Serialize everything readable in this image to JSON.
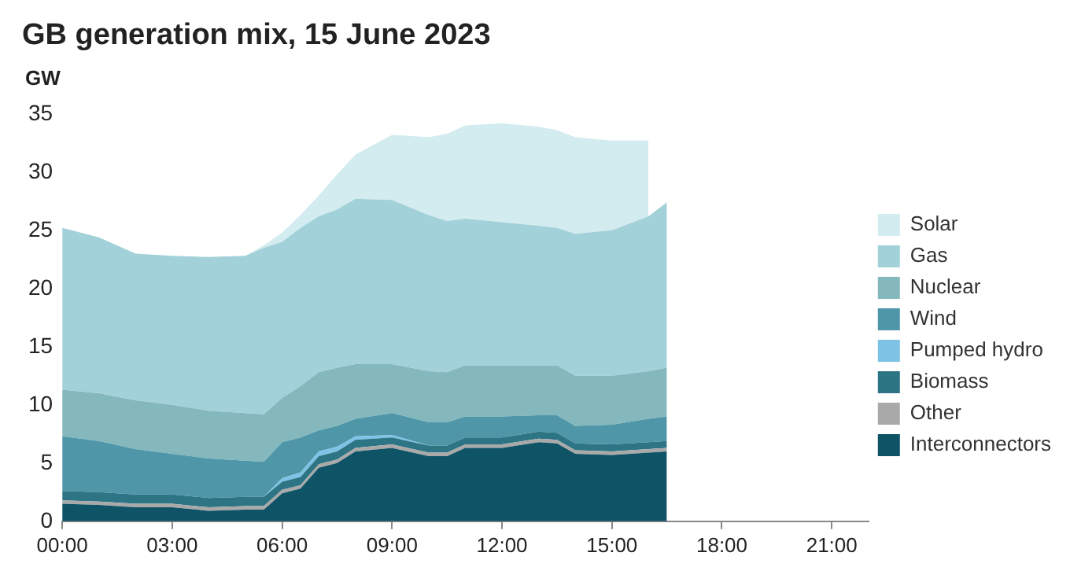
{
  "chart_data": {
    "type": "area",
    "title": "GB generation mix, 15 June 2023",
    "ylabel": "GW",
    "stacked": true,
    "legend": "right",
    "grid": false,
    "x": [
      0,
      1,
      2,
      3,
      4,
      5,
      5.5,
      6,
      6.5,
      7,
      7.5,
      8,
      9,
      10,
      10.5,
      11,
      12,
      13,
      13.5,
      14,
      15,
      16,
      16.5
    ],
    "xlim": [
      0,
      22
    ],
    "xticks": [
      {
        "value": 0,
        "label": "00:00"
      },
      {
        "value": 3,
        "label": "03:00"
      },
      {
        "value": 6,
        "label": "06:00"
      },
      {
        "value": 9,
        "label": "09:00"
      },
      {
        "value": 12,
        "label": "12:00"
      },
      {
        "value": 15,
        "label": "15:00"
      },
      {
        "value": 18,
        "label": "18:00"
      },
      {
        "value": 21,
        "label": "21:00"
      }
    ],
    "ylim": [
      0,
      35
    ],
    "yticks": [
      0,
      5,
      10,
      15,
      20,
      25,
      30,
      35
    ],
    "series": [
      {
        "name": "Interconnectors",
        "color": "#0f5366",
        "values": [
          1.5,
          1.4,
          1.2,
          1.2,
          0.9,
          1.0,
          1.0,
          2.4,
          2.8,
          4.6,
          5.0,
          6.0,
          6.3,
          5.6,
          5.6,
          6.3,
          6.3,
          6.8,
          6.7,
          5.8,
          5.7,
          5.9,
          6.0
        ]
      },
      {
        "name": "Other",
        "color": "#a9a9a9",
        "values": [
          0.3,
          0.3,
          0.3,
          0.3,
          0.3,
          0.3,
          0.3,
          0.3,
          0.3,
          0.3,
          0.3,
          0.3,
          0.3,
          0.3,
          0.3,
          0.3,
          0.3,
          0.3,
          0.3,
          0.3,
          0.3,
          0.3,
          0.3
        ]
      },
      {
        "name": "Biomass",
        "color": "#2d7585",
        "values": [
          0.8,
          0.8,
          0.8,
          0.8,
          0.8,
          0.8,
          0.8,
          0.7,
          0.7,
          0.7,
          0.7,
          0.7,
          0.6,
          0.6,
          0.6,
          0.6,
          0.6,
          0.6,
          0.6,
          0.6,
          0.6,
          0.6,
          0.6
        ]
      },
      {
        "name": "Pumped hydro",
        "color": "#7cc3e6",
        "values": [
          0,
          0,
          0,
          0,
          0,
          0,
          0,
          0.3,
          0.4,
          0.4,
          0.4,
          0.3,
          0.2,
          0,
          0,
          0,
          0,
          0,
          0,
          0,
          0,
          0,
          0
        ]
      },
      {
        "name": "Wind",
        "color": "#4f97a8",
        "values": [
          4.7,
          4.4,
          3.9,
          3.5,
          3.4,
          3.1,
          3.0,
          3.1,
          3.0,
          1.8,
          1.8,
          1.5,
          1.9,
          2.0,
          2.0,
          1.8,
          1.8,
          1.4,
          1.5,
          1.5,
          1.7,
          2.0,
          2.1
        ]
      },
      {
        "name": "Nuclear",
        "color": "#84b8bd",
        "values": [
          4.0,
          4.1,
          4.2,
          4.2,
          4.1,
          4.1,
          4.1,
          3.8,
          4.4,
          5.0,
          5.0,
          4.7,
          4.2,
          4.4,
          4.3,
          4.4,
          4.4,
          4.3,
          4.3,
          4.3,
          4.2,
          4.1,
          4.2
        ]
      },
      {
        "name": "Gas",
        "color": "#a3d1d9",
        "values": [
          13.9,
          13.4,
          12.6,
          12.8,
          13.2,
          13.5,
          14.3,
          13.4,
          13.6,
          13.4,
          13.6,
          14.2,
          14.1,
          13.4,
          13.0,
          12.6,
          12.3,
          12.0,
          11.8,
          12.2,
          12.5,
          13.3,
          14.2
        ]
      },
      {
        "name": "Solar",
        "color": "#d3ecf0",
        "values": [
          0,
          0,
          0,
          0,
          0,
          0,
          0.2,
          0.8,
          1.1,
          1.8,
          3.0,
          3.8,
          5.6,
          6.7,
          7.5,
          8.0,
          8.5,
          8.5,
          8.4,
          8.3,
          7.7,
          6.5,
          null
        ]
      }
    ]
  }
}
